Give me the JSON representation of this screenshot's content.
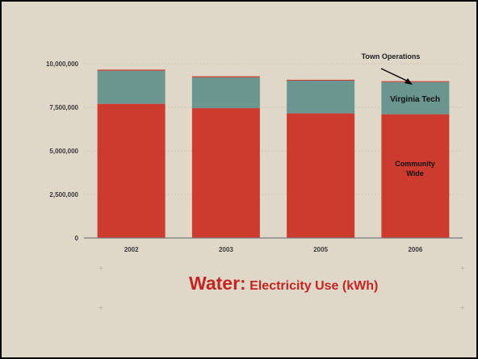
{
  "chart_data": {
    "type": "bar",
    "stacked": true,
    "categories": [
      "2002",
      "2003",
      "2005",
      "2006"
    ],
    "series": [
      {
        "name": "Community Wide",
        "color": "#cc3b2e",
        "values": [
          7700000,
          7450000,
          7150000,
          7100000
        ]
      },
      {
        "name": "Virginia Tech",
        "color": "#6b9690",
        "values": [
          1900000,
          1770000,
          1880000,
          1850000
        ]
      },
      {
        "name": "Town Operations",
        "color": "#cc3b2e",
        "values": [
          60000,
          60000,
          50000,
          50000
        ]
      }
    ],
    "y_ticks": [
      "0",
      "2,500,000",
      "5,000,000",
      "7,500,000",
      "10,000,000"
    ],
    "ylim": [
      0,
      10000000
    ],
    "grid": true,
    "annotations": {
      "town_operations": "Town Operations",
      "virginia_tech": "Virginia Tech",
      "community_wide_line1": "Community",
      "community_wide_line2": "Wide"
    }
  },
  "caption": {
    "part1": "Water:",
    "part2": "Electricity Use (kWh)"
  }
}
